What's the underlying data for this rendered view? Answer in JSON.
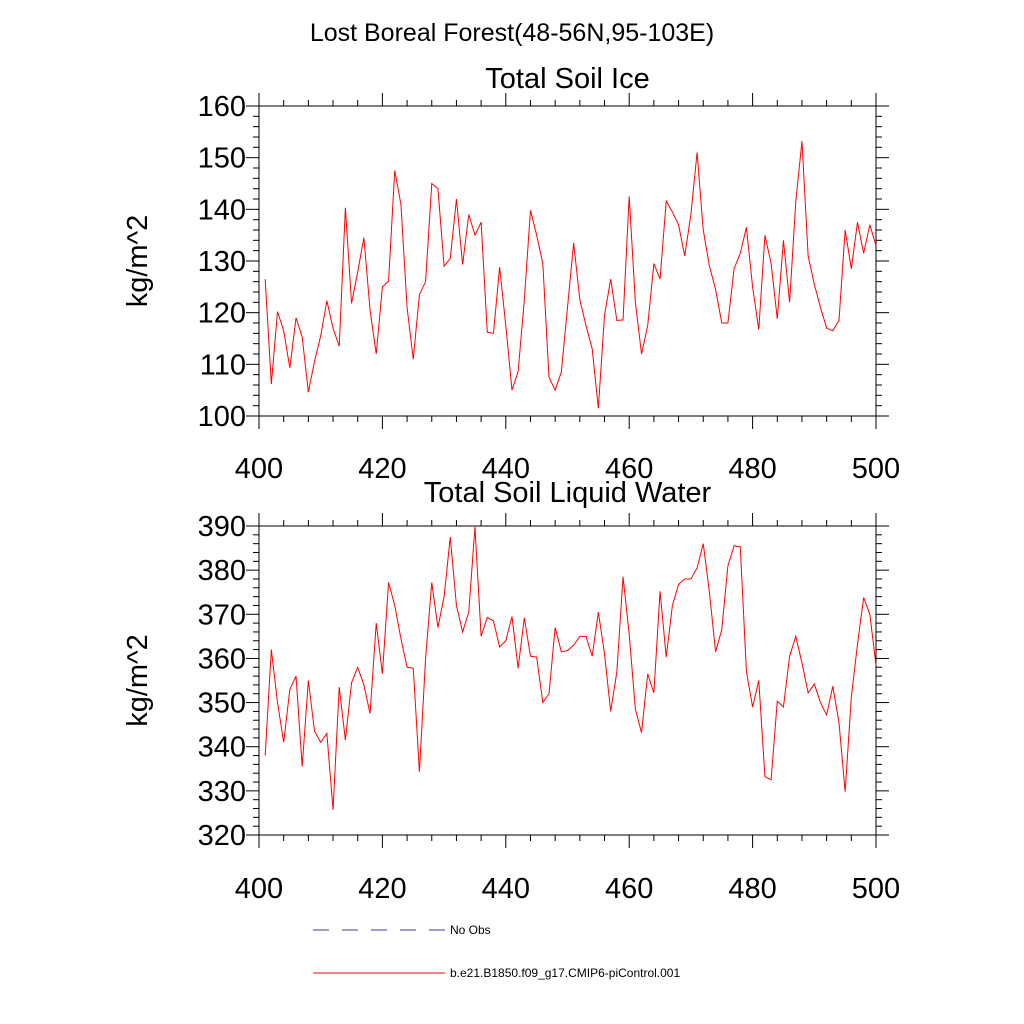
{
  "figure_title": "Lost Boreal Forest(48-56N,95-103E)",
  "legend": [
    {
      "label": "No Obs",
      "color": "#3b3b8f",
      "style": "dashed"
    },
    {
      "label": "b.e21.B1850.f09_g17.CMIP6-piControl.001",
      "color": "#ff0000",
      "style": "solid"
    }
  ],
  "chart_data": [
    {
      "type": "line",
      "title": "Total Soil Ice",
      "xlabel": "",
      "ylabel": "kg/m^2",
      "xlim": [
        400,
        500
      ],
      "ylim": [
        100,
        160
      ],
      "xticks": [
        400,
        420,
        440,
        460,
        480,
        500
      ],
      "yticks": [
        100,
        110,
        120,
        130,
        140,
        150,
        160
      ],
      "series": [
        {
          "name": "b.e21.B1850.f09_g17.CMIP6-piControl.001",
          "color": "#ff0000",
          "x": [
            401,
            402,
            403,
            404,
            405,
            406,
            407,
            408,
            409,
            410,
            411,
            412,
            413,
            414,
            415,
            416,
            417,
            418,
            419,
            420,
            421,
            422,
            423,
            424,
            425,
            426,
            427,
            428,
            429,
            430,
            431,
            432,
            433,
            434,
            435,
            436,
            437,
            438,
            439,
            440,
            441,
            442,
            443,
            444,
            445,
            446,
            447,
            448,
            449,
            450,
            451,
            452,
            453,
            454,
            455,
            456,
            457,
            458,
            459,
            460,
            461,
            462,
            463,
            464,
            465,
            466,
            467,
            468,
            469,
            470,
            471,
            472,
            473,
            474,
            475,
            476,
            477,
            478,
            479,
            480,
            481,
            482,
            483,
            484,
            485,
            486,
            487,
            488,
            489,
            490,
            491,
            492,
            493,
            494,
            495,
            496,
            497,
            498,
            499,
            500
          ],
          "values": [
            126.5,
            106.2,
            120.2,
            116.5,
            109.3,
            119.0,
            115.3,
            104.6,
            110.6,
            115.5,
            122.3,
            117.0,
            113.5,
            140.3,
            121.8,
            127.9,
            134.5,
            120.5,
            112.0,
            125.0,
            126.1,
            147.5,
            141.0,
            121.0,
            111.0,
            123.5,
            126.0,
            145.0,
            144.0,
            129.0,
            130.5,
            142.0,
            129.3,
            139.0,
            135.0,
            137.5,
            116.2,
            116.0,
            128.8,
            117.5,
            105.0,
            108.6,
            122.5,
            139.8,
            135.0,
            129.5,
            107.5,
            105.0,
            108.5,
            121.0,
            133.5,
            122.5,
            117.5,
            113.0,
            101.5,
            119.5,
            126.5,
            118.5,
            118.6,
            142.5,
            122.0,
            112.0,
            117.5,
            129.5,
            126.5,
            141.6,
            139.5,
            137.0,
            131.0,
            139.0,
            151.0,
            136.0,
            129.0,
            124.5,
            118.0,
            118.0,
            128.5,
            131.5,
            136.5,
            125.0,
            116.7,
            135.0,
            129.5,
            118.8,
            134.0,
            122.0,
            141.5,
            153.2,
            131.0,
            125.5,
            121.0,
            117.0,
            116.5,
            118.5,
            136.0,
            128.5,
            137.5,
            131.5,
            137.0,
            133.0
          ]
        }
      ]
    },
    {
      "type": "line",
      "title": "Total Soil Liquid Water",
      "xlabel": "",
      "ylabel": "kg/m^2",
      "xlim": [
        400,
        500
      ],
      "ylim": [
        320,
        390
      ],
      "xticks": [
        400,
        420,
        440,
        460,
        480,
        500
      ],
      "yticks": [
        320,
        330,
        340,
        350,
        360,
        370,
        380,
        390
      ],
      "series": [
        {
          "name": "b.e21.B1850.f09_g17.CMIP6-piControl.001",
          "color": "#ff0000",
          "x": [
            401,
            402,
            403,
            404,
            405,
            406,
            407,
            408,
            409,
            410,
            411,
            412,
            413,
            414,
            415,
            416,
            417,
            418,
            419,
            420,
            421,
            422,
            423,
            424,
            425,
            426,
            427,
            428,
            429,
            430,
            431,
            432,
            433,
            434,
            435,
            436,
            437,
            438,
            439,
            440,
            441,
            442,
            443,
            444,
            445,
            446,
            447,
            448,
            449,
            450,
            451,
            452,
            453,
            454,
            455,
            456,
            457,
            458,
            459,
            460,
            461,
            462,
            463,
            464,
            465,
            466,
            467,
            468,
            469,
            470,
            471,
            472,
            473,
            474,
            475,
            476,
            477,
            478,
            479,
            480,
            481,
            482,
            483,
            484,
            485,
            486,
            487,
            488,
            489,
            490,
            491,
            492,
            493,
            494,
            495,
            496,
            497,
            498,
            499,
            500
          ],
          "values": [
            338.0,
            362.0,
            350.0,
            341.0,
            353.0,
            356.0,
            335.5,
            355.0,
            343.5,
            341.0,
            343.0,
            325.7,
            353.5,
            341.5,
            354.5,
            358.0,
            354.0,
            347.5,
            368.0,
            356.5,
            377.2,
            372.0,
            364.5,
            358.0,
            357.8,
            334.3,
            360.0,
            377.2,
            367.0,
            374.0,
            387.5,
            372.0,
            366.0,
            370.5,
            389.8,
            365.0,
            369.3,
            368.5,
            362.6,
            364.0,
            369.5,
            357.8,
            369.2,
            360.5,
            360.3,
            350.0,
            352.0,
            367.0,
            361.5,
            361.8,
            363.0,
            365.0,
            365.0,
            360.5,
            370.5,
            361.0,
            348.0,
            357.0,
            378.5,
            365.5,
            348.5,
            343.2,
            356.5,
            352.2,
            375.2,
            360.3,
            372.0,
            376.8,
            378.0,
            378.0,
            380.5,
            386.0,
            375.0,
            361.5,
            366.5,
            381.0,
            385.5,
            385.3,
            357.0,
            349.0,
            355.0,
            333.2,
            332.5,
            350.3,
            349.0,
            360.5,
            365.0,
            359.0,
            352.2,
            354.2,
            350.0,
            347.2,
            353.7,
            345.5,
            329.8,
            351.2,
            363.2,
            373.8,
            370.0,
            358.5
          ]
        }
      ]
    }
  ]
}
